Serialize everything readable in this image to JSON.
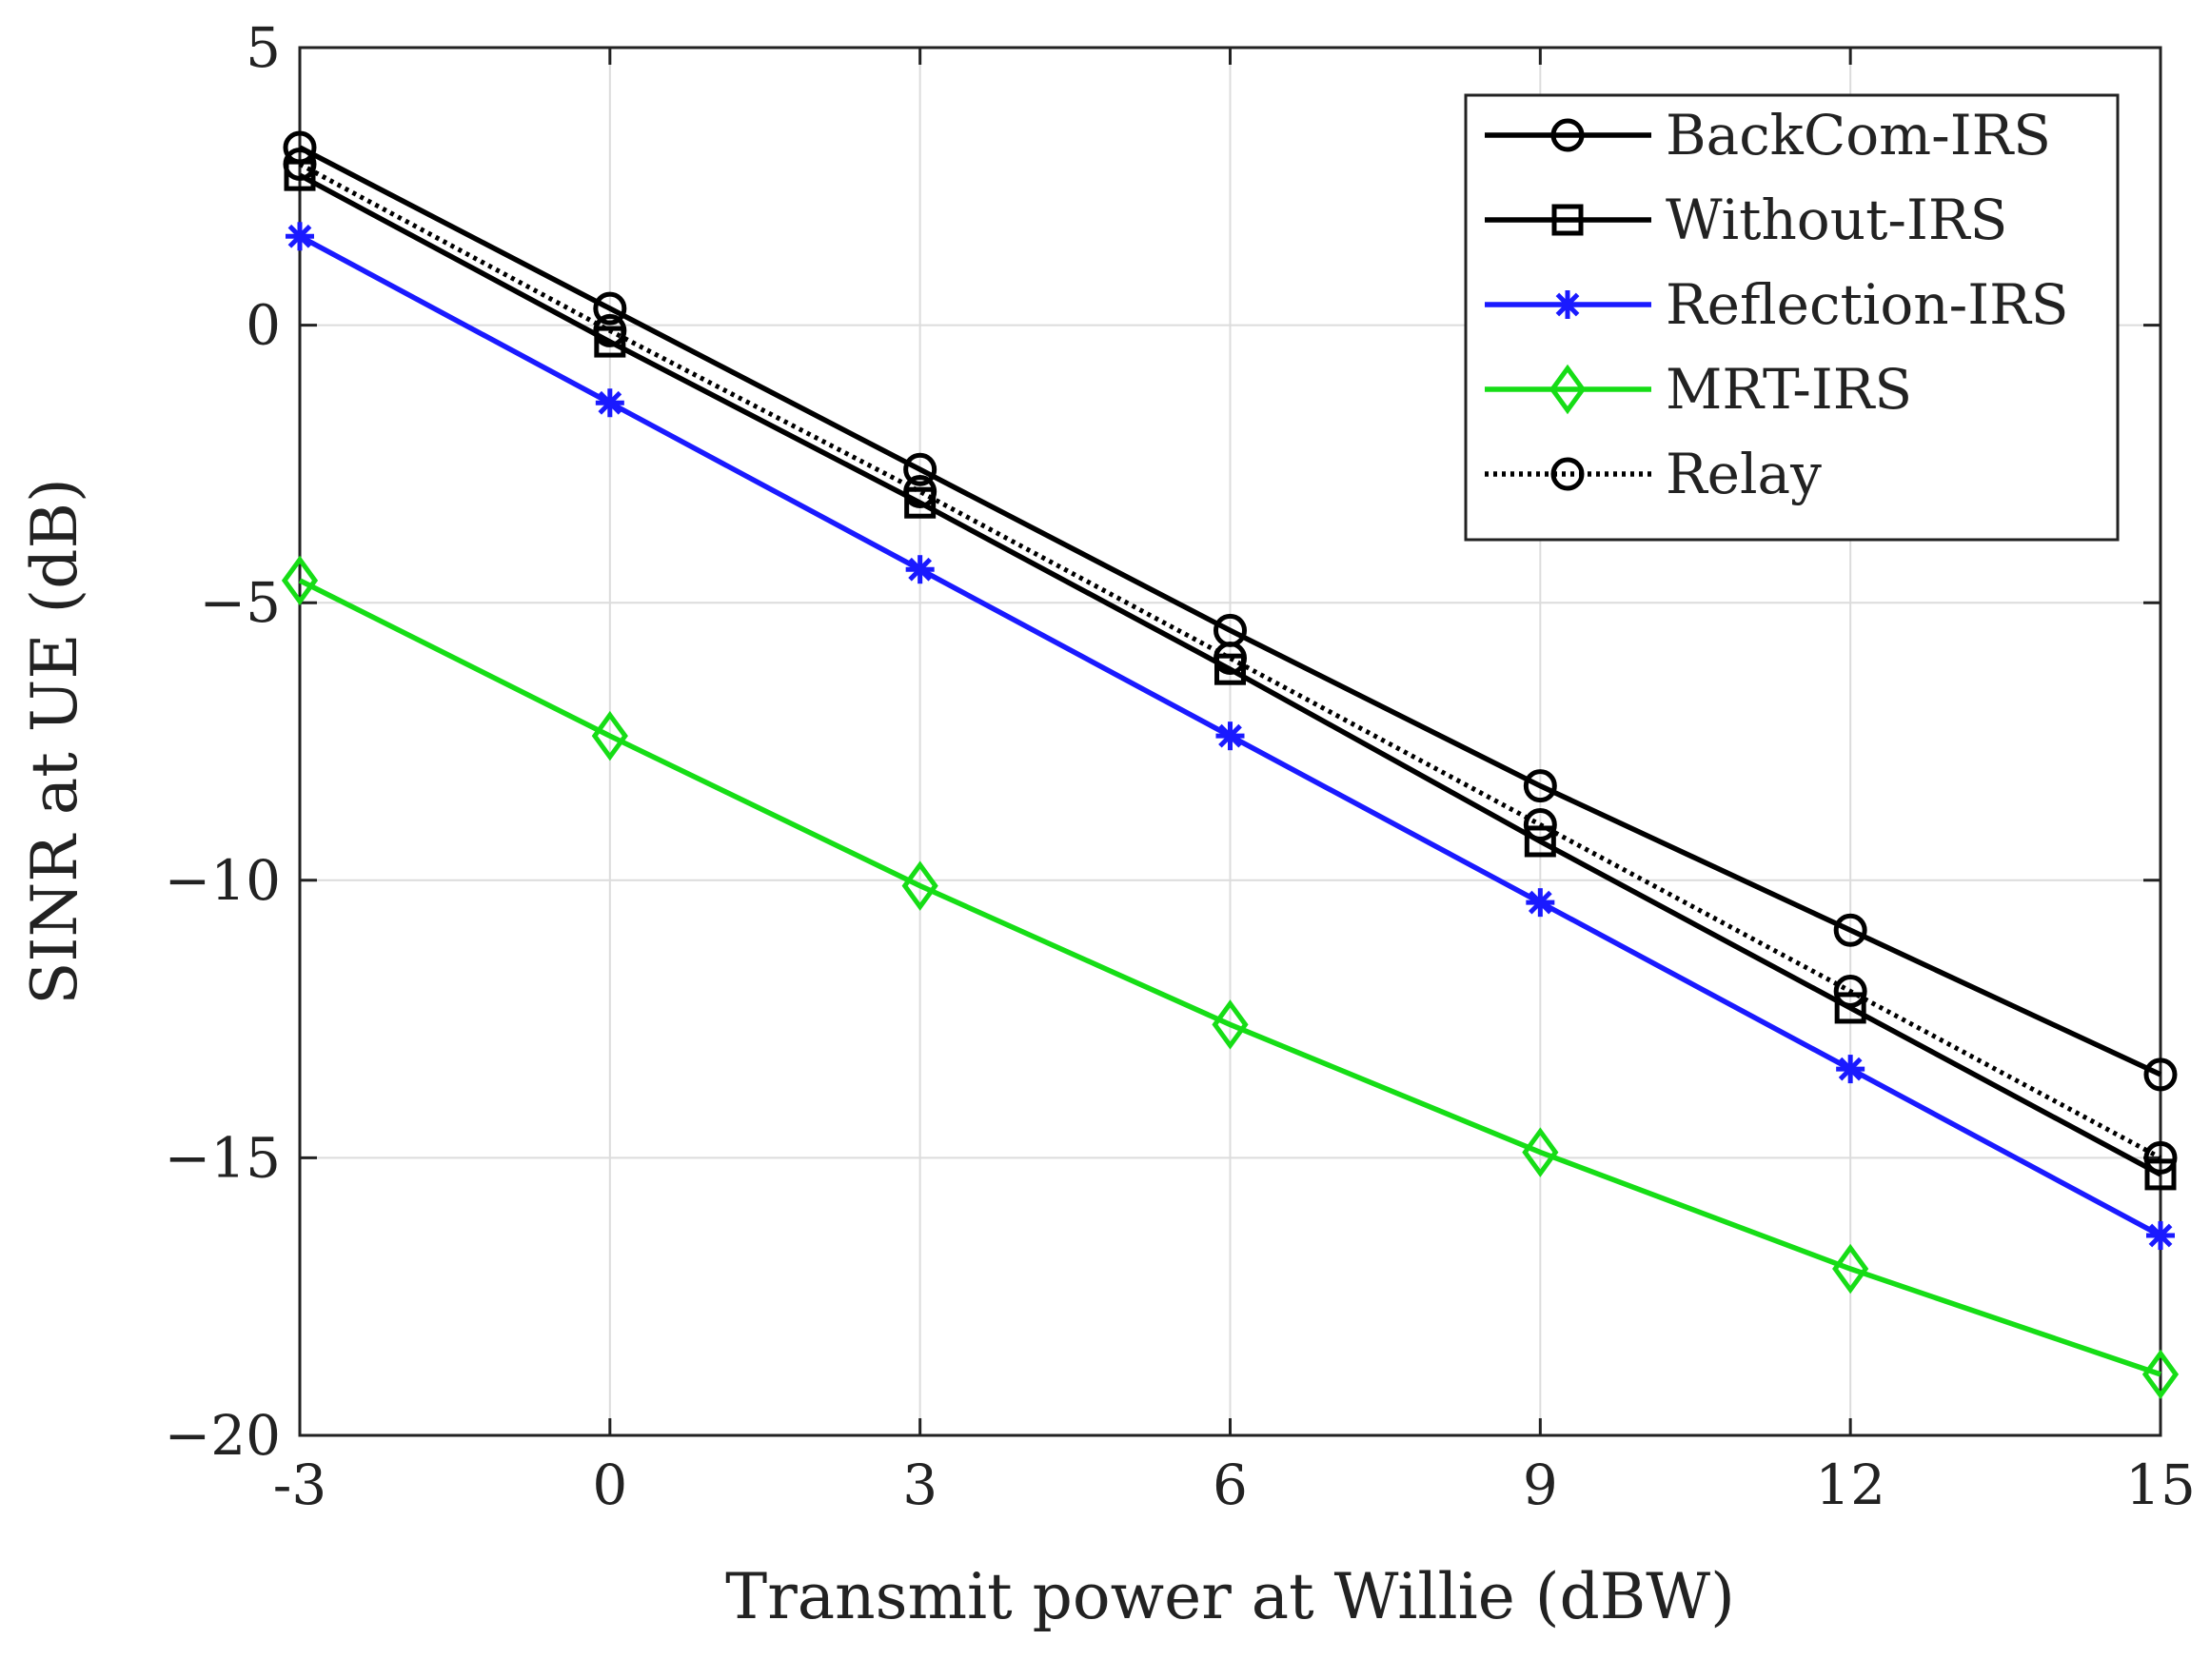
{
  "chart_data": {
    "type": "line",
    "title": "",
    "xlabel": "Transmit power at Willie (dBW)",
    "ylabel": "SINR at UE (dB)",
    "x": [
      -3,
      0,
      3,
      6,
      9,
      12,
      15
    ],
    "x_tick_labels": [
      "-3",
      "0",
      "3",
      "6",
      "9",
      "12",
      "15"
    ],
    "y_ticks": [
      5,
      0,
      -5,
      -10,
      -15,
      -20
    ],
    "y_tick_labels": [
      "5",
      "0",
      "−5",
      "−10",
      "−15",
      "−20"
    ],
    "xlim": [
      -3,
      15
    ],
    "ylim": [
      -20,
      5
    ],
    "grid": true,
    "legend_position": "top-right",
    "series": [
      {
        "name": "BackCom-IRS",
        "color": "#000000",
        "marker": "circle",
        "dash": "solid",
        "values": [
          3.2,
          0.3,
          -2.6,
          -5.5,
          -8.3,
          -10.9,
          -13.5
        ]
      },
      {
        "name": "Without-IRS",
        "color": "#000000",
        "marker": "square",
        "dash": "solid",
        "values": [
          2.7,
          -0.3,
          -3.2,
          -6.2,
          -9.3,
          -12.3,
          -15.3
        ]
      },
      {
        "name": "Reflection-IRS",
        "color": "#1a1aff",
        "marker": "asterisk",
        "dash": "solid",
        "values": [
          1.6,
          -1.4,
          -4.4,
          -7.4,
          -10.4,
          -13.4,
          -16.4
        ]
      },
      {
        "name": "MRT-IRS",
        "color": "#16dd16",
        "marker": "diamond",
        "dash": "solid",
        "values": [
          -4.6,
          -7.4,
          -10.1,
          -12.6,
          -14.9,
          -17.0,
          -18.9
        ]
      },
      {
        "name": "Relay",
        "color": "#000000",
        "marker": "circle",
        "dash": "dotted",
        "values": [
          2.9,
          -0.1,
          -3.0,
          -6.0,
          -9.0,
          -12.0,
          -15.0
        ]
      }
    ]
  }
}
